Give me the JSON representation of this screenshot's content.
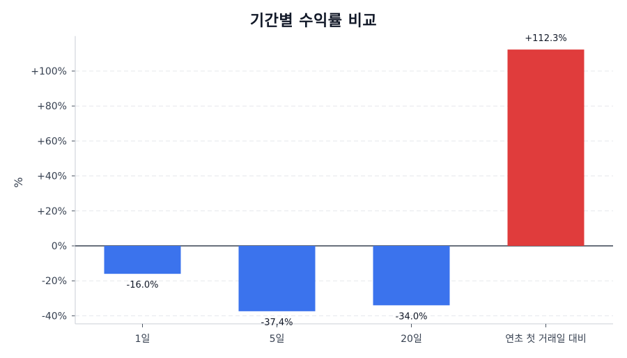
{
  "chart_data": {
    "type": "bar",
    "title": "기간별 수익률 비교",
    "xlabel": "",
    "ylabel": "%",
    "categories": [
      "1일",
      "5일",
      "20일",
      "연초 첫 거래일 대비"
    ],
    "values": [
      -16.0,
      -37.4,
      -34.0,
      112.3
    ],
    "value_labels": [
      "-16.0%",
      "-37.4%",
      "-34.0%",
      "+112.3%"
    ],
    "bar_colors": [
      "#3b73ed",
      "#3b73ed",
      "#3b73ed",
      "#e03c3c"
    ],
    "ylim": [
      -44.6,
      120
    ],
    "yticks": [
      -40,
      -20,
      0,
      20,
      40,
      60,
      80,
      100
    ],
    "ytick_labels": [
      "-40%",
      "-20%",
      "0%",
      "+20%",
      "+40%",
      "+60%",
      "+80%",
      "+100%"
    ],
    "grid": true,
    "grid_style": "dashed horizontal",
    "zero_line": true,
    "legend": null
  },
  "colors": {
    "positive": "#e03c3c",
    "negative": "#3b73ed",
    "grid": "#e5e7eb",
    "axis": "#d1d5db",
    "zero_line": "#374151"
  }
}
